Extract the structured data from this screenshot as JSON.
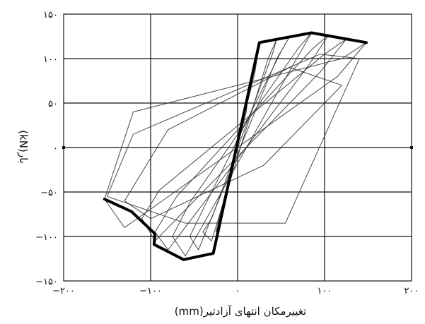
{
  "chart_data": {
    "type": "line",
    "xlabel": "تغییرمکان انتهای آزادتیر(mm)",
    "ylabel": "بار(kN)",
    "xlim": [
      -200,
      200
    ],
    "ylim": [
      -150,
      150
    ],
    "x_ticks": [
      -200,
      -100,
      0,
      100,
      200
    ],
    "x_tick_labels": [
      "−۲۰۰",
      "−۱۰۰",
      "۰",
      "۱۰۰",
      "۲۰۰"
    ],
    "y_ticks": [
      150,
      100,
      50,
      0,
      -50,
      -100,
      -150
    ],
    "y_tick_labels": [
      "۱۵۰",
      "۱۰۰",
      "۵۰",
      "۰",
      "−۵۰",
      "−۱۰۰",
      "−۱۵۰"
    ],
    "grid": true,
    "series": [
      {
        "role": "envelope",
        "x": [
          -153,
          -122,
          -95,
          -96,
          -62,
          -28,
          25,
          85,
          148
        ],
        "y": [
          -58,
          -72,
          -97,
          -109,
          -126,
          -119,
          118,
          129,
          118
        ]
      },
      {
        "role": "cycle",
        "x": [
          12,
          -10,
          -12,
          10,
          12
        ],
        "y": [
          60,
          -35,
          -45,
          40,
          60
        ]
      },
      {
        "role": "cycle",
        "x": [
          25,
          -20,
          -25,
          20,
          25
        ],
        "y": [
          118,
          -85,
          -95,
          85,
          118
        ]
      },
      {
        "role": "cycle",
        "x": [
          45,
          40,
          -30,
          -40,
          -30,
          35,
          45
        ],
        "y": [
          122,
          105,
          -80,
          -95,
          -105,
          100,
          122
        ]
      },
      {
        "role": "cycle",
        "x": [
          60,
          50,
          -40,
          -55,
          -45,
          45,
          60
        ],
        "y": [
          125,
          108,
          -70,
          -100,
          -115,
          100,
          125
        ]
      },
      {
        "role": "cycle",
        "x": [
          85,
          70,
          -55,
          -75,
          -60,
          65,
          85
        ],
        "y": [
          129,
          112,
          -62,
          -100,
          -122,
          95,
          129
        ]
      },
      {
        "role": "cycle",
        "x": [
          105,
          85,
          -70,
          -95,
          -80,
          80,
          105
        ],
        "y": [
          127,
          110,
          -55,
          -95,
          -115,
          90,
          127
        ]
      },
      {
        "role": "cycle",
        "x": [
          125,
          100,
          -90,
          -110,
          -95,
          95,
          125
        ],
        "y": [
          122,
          105,
          -48,
          -80,
          -105,
          85,
          122
        ]
      },
      {
        "role": "cycle",
        "x": [
          148,
          120,
          -120,
          -153,
          -130,
          115,
          148
        ],
        "y": [
          118,
          100,
          40,
          -58,
          -90,
          80,
          118
        ]
      },
      {
        "role": "cycle",
        "x": [
          120,
          60,
          -80,
          -130,
          -100,
          30,
          120
        ],
        "y": [
          70,
          90,
          20,
          -60,
          -80,
          -20,
          70
        ]
      },
      {
        "role": "cycle",
        "x": [
          140,
          95,
          -120,
          -150,
          -60,
          55,
          140
        ],
        "y": [
          100,
          105,
          15,
          -55,
          -85,
          -85,
          100
        ]
      }
    ]
  }
}
